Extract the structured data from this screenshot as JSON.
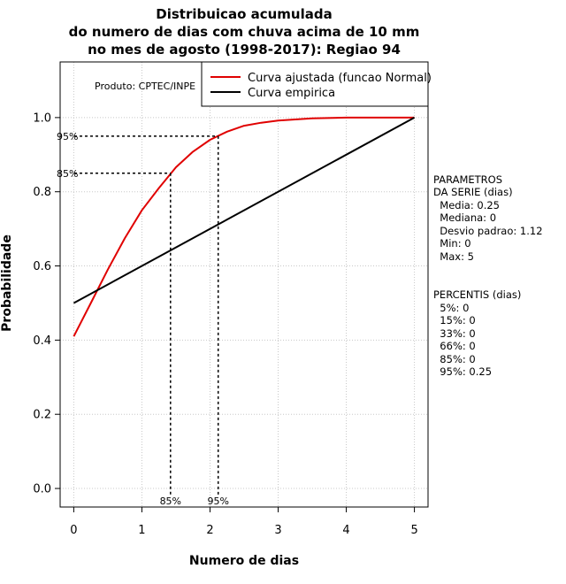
{
  "chart_data": {
    "type": "line",
    "title": [
      "Distribuicao acumulada",
      "do numero de dias com chuva acima de 10 mm",
      "no mes de agosto (1998-2017): Regiao 94"
    ],
    "xlabel": "Numero de dias",
    "ylabel": "Probabilidade",
    "xlim": [
      -0.2,
      5.2
    ],
    "ylim": [
      -0.05,
      1.15
    ],
    "x_ticks": [
      0,
      1,
      2,
      3,
      4,
      5
    ],
    "x_tick_labels": [
      "0",
      "1",
      "2",
      "3",
      "4",
      "5"
    ],
    "y_ticks": [
      0.0,
      0.2,
      0.4,
      0.6,
      0.8,
      1.0
    ],
    "y_tick_labels": [
      "0.0",
      "0.2",
      "0.4",
      "0.6",
      "0.8",
      "1.0"
    ],
    "grid": true,
    "legend_position": "top-right",
    "series": [
      {
        "name": "Curva ajustada (funcao Normal)",
        "color": "#e00000",
        "x": [
          0,
          0.25,
          0.5,
          0.75,
          1.0,
          1.25,
          1.5,
          1.75,
          2.0,
          2.25,
          2.5,
          2.75,
          3.0,
          3.5,
          4.0,
          4.5,
          5.0
        ],
        "y": [
          0.41,
          0.5,
          0.59,
          0.675,
          0.75,
          0.81,
          0.866,
          0.908,
          0.94,
          0.962,
          0.978,
          0.986,
          0.992,
          0.998,
          1.0,
          1.0,
          1.0
        ]
      },
      {
        "name": "Curva empirica",
        "color": "#000000",
        "x": [
          0,
          5
        ],
        "y": [
          0.5,
          1.0
        ]
      }
    ],
    "percentile_markers": [
      {
        "label": "85%",
        "x": 1.42,
        "y": 0.85
      },
      {
        "label": "95%",
        "x": 2.12,
        "y": 0.95
      }
    ],
    "annotations": {
      "produto": "Produto: CPTEC/INPE"
    }
  },
  "side_panel": {
    "parametros": [
      "PARAMETROS",
      "DA SERIE (dias)",
      "  Media: 0.25",
      "  Mediana: 0",
      "  Desvio padrao: 1.12",
      "  Min: 0",
      "  Max: 5"
    ],
    "percentis": [
      "PERCENTIS (dias)",
      "  5%: 0",
      "  15%: 0",
      "  33%: 0",
      "  66%: 0",
      "  85%: 0",
      "  95%: 0.25"
    ]
  }
}
